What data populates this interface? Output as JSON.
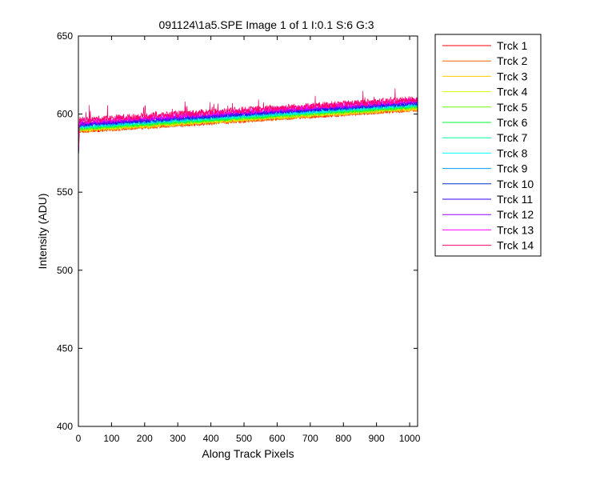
{
  "chart_data": {
    "type": "line",
    "title": "091124\\1a5.SPE  Image 1 of 1  I:0.1  S:6  G:3",
    "xlabel": "Along Track Pixels",
    "ylabel": "Intensity (ADU)",
    "xlim": [
      0,
      1024
    ],
    "ylim": [
      400,
      650
    ],
    "xticks": [
      0,
      100,
      200,
      300,
      400,
      500,
      600,
      700,
      800,
      900,
      1000
    ],
    "yticks": [
      400,
      450,
      500,
      550,
      600,
      650
    ],
    "grid": false,
    "legend_position": "outside-right",
    "series": [
      {
        "name": "Trck 1",
        "color": "#ff0000",
        "start": 589,
        "end": 603,
        "noise": 1.4
      },
      {
        "name": "Trck 2",
        "color": "#ff6600",
        "start": 589,
        "end": 603,
        "noise": 1.4
      },
      {
        "name": "Trck 3",
        "color": "#ffcc00",
        "start": 589.5,
        "end": 603.5,
        "noise": 1.4
      },
      {
        "name": "Trck 4",
        "color": "#ccff00",
        "start": 590,
        "end": 604,
        "noise": 1.4
      },
      {
        "name": "Trck 5",
        "color": "#66ff00",
        "start": 590.5,
        "end": 604.5,
        "noise": 1.4
      },
      {
        "name": "Trck 6",
        "color": "#00ff33",
        "start": 591,
        "end": 605,
        "noise": 1.4
      },
      {
        "name": "Trck 7",
        "color": "#00ff99",
        "start": 591.5,
        "end": 605.5,
        "noise": 1.4
      },
      {
        "name": "Trck 8",
        "color": "#00ffff",
        "start": 592,
        "end": 606,
        "noise": 1.4
      },
      {
        "name": "Trck 9",
        "color": "#0099ff",
        "start": 592.5,
        "end": 606.5,
        "noise": 1.4
      },
      {
        "name": "Trck 10",
        "color": "#0033cc",
        "start": 593,
        "end": 607,
        "noise": 1.4
      },
      {
        "name": "Trck 11",
        "color": "#3300ff",
        "start": 593.5,
        "end": 607.5,
        "noise": 1.4
      },
      {
        "name": "Trck 12",
        "color": "#9900ff",
        "start": 594,
        "end": 608,
        "noise": 1.6
      },
      {
        "name": "Trck 13",
        "color": "#ff00ff",
        "start": 595,
        "end": 609,
        "noise": 1.8
      },
      {
        "name": "Trck 14",
        "color": "#ff0066",
        "start": 596,
        "end": 609.5,
        "noise": 2.2
      }
    ]
  }
}
